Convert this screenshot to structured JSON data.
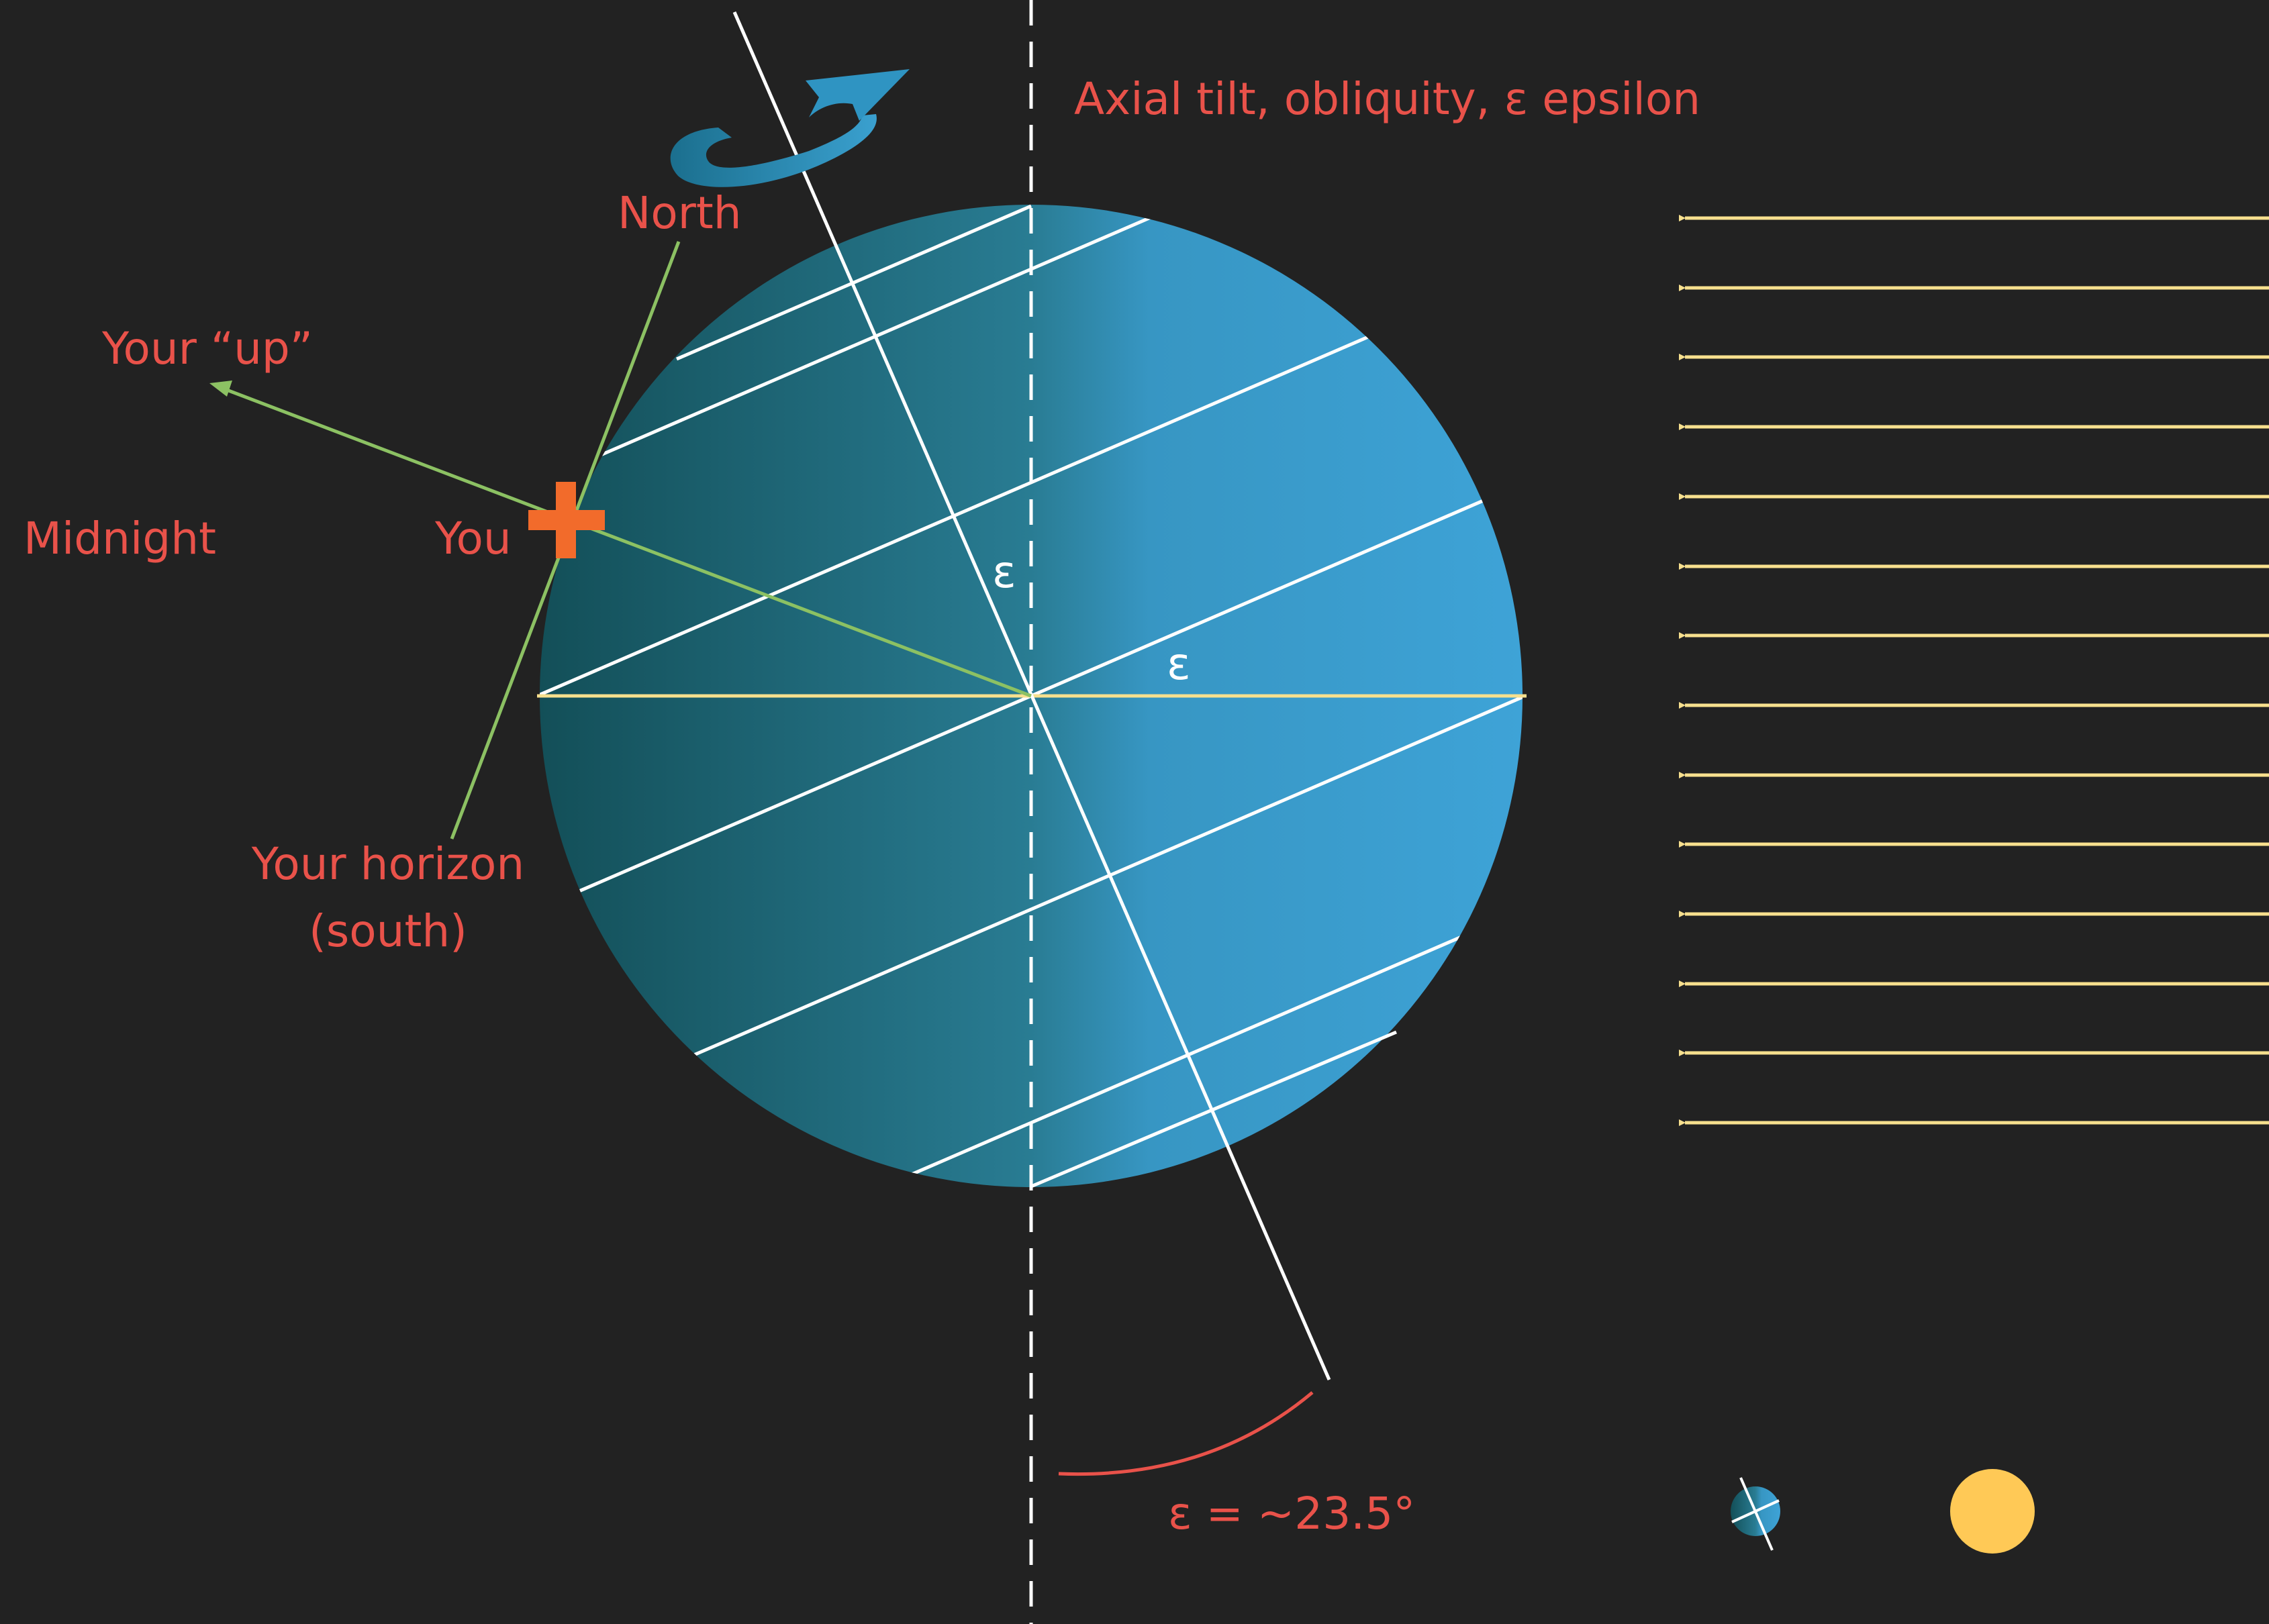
{
  "labels": {
    "axial_tilt": "Axial tilt, obliquity, ε epsilon",
    "north": "North",
    "your_up": "Your “up”",
    "midnight": "Midnight",
    "you": "You",
    "your_horizon_line1": "Your horizon",
    "your_horizon_line2": "(south)",
    "epsilon_axis": "ε",
    "epsilon_equator": "ε",
    "epsilon_value": "ε = ~23.5°"
  },
  "colors": {
    "background": "#222222",
    "label_text": "#e9524a",
    "earth_dark": "#134f58",
    "earth_light": "#3ea3d7",
    "sunlight": "#f7e08e",
    "sun": "#ffc956",
    "horizon_line": "#8cc163",
    "you_marker": "#f26b2b",
    "rotation_arrow": "#2b8fb6"
  },
  "icons": {
    "rotation": "curved-rotation-arrow-icon",
    "you_marker": "plus-marker-icon",
    "sun": "sun-icon",
    "mini_earth": "mini-earth-icon"
  }
}
